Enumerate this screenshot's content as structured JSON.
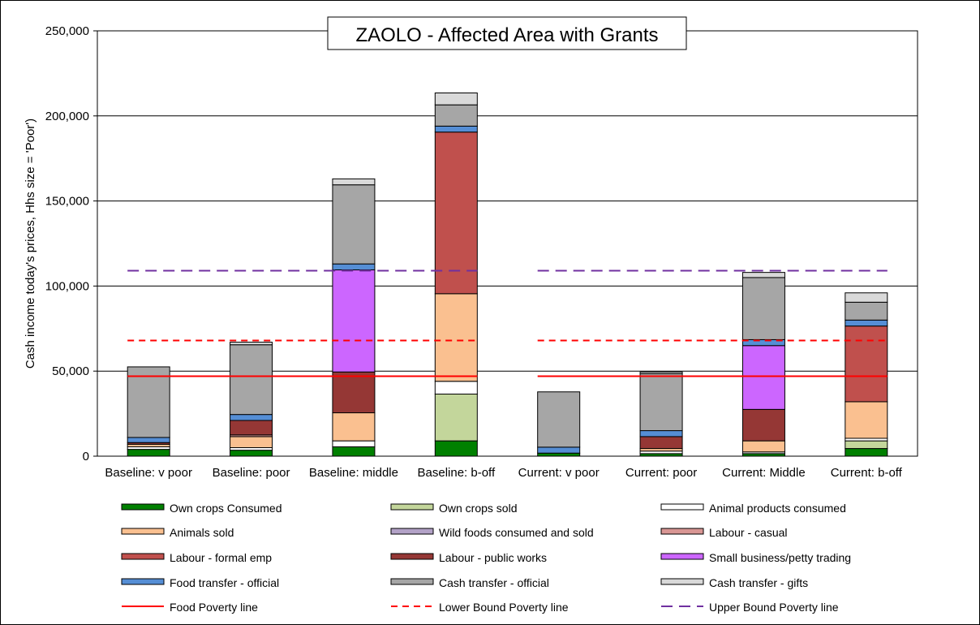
{
  "chart_data": {
    "type": "bar",
    "stacked": true,
    "title": "ZAOLO - Affected Area with Grants",
    "ylabel": "Cash income today's prices, Hhs size = 'Poor')",
    "xlabel": "",
    "ylim": [
      0,
      250000
    ],
    "y_ticks": [
      "0",
      "50,000",
      "100,000",
      "150,000",
      "200,000",
      "250,000"
    ],
    "y_tick_values": [
      0,
      50000,
      100000,
      150000,
      200000,
      250000
    ],
    "grid": true,
    "legend_position": "bottom",
    "categories": [
      "Baseline: v poor",
      "Baseline: poor",
      "Baseline: middle",
      "Baseline: b-off",
      "Current: v poor",
      "Current: poor",
      "Current: Middle",
      "Current: b-off"
    ],
    "series": [
      {
        "name": "Own crops Consumed",
        "color": "#008000",
        "values": [
          4000,
          3500,
          5500,
          9000,
          1800,
          1500,
          1500,
          4500
        ]
      },
      {
        "name": "Own crops sold",
        "color": "#c3d69b",
        "values": [
          0,
          0,
          0,
          27500,
          0,
          0,
          0,
          4500
        ]
      },
      {
        "name": "Animal products consumed",
        "color": "#ffffff",
        "values": [
          1500,
          1500,
          3500,
          7500,
          0,
          1500,
          1000,
          1500
        ]
      },
      {
        "name": "Animals sold",
        "color": "#fac090",
        "values": [
          1500,
          6500,
          16500,
          51500,
          0,
          1500,
          6500,
          21500
        ]
      },
      {
        "name": "Wild foods consumed and sold",
        "color": "#b3a2c7",
        "values": [
          0,
          0,
          0,
          0,
          0,
          0,
          0,
          0
        ]
      },
      {
        "name": "Labour - casual",
        "color": "#d99694",
        "values": [
          0,
          1000,
          0,
          0,
          0,
          0,
          0,
          0
        ]
      },
      {
        "name": "Labour - formal emp",
        "color": "#c0504d",
        "values": [
          0,
          0,
          0,
          95000,
          0,
          0,
          0,
          44500
        ]
      },
      {
        "name": "Labour - public works",
        "color": "#953735",
        "values": [
          1000,
          8500,
          24000,
          0,
          0,
          7000,
          18500,
          0
        ]
      },
      {
        "name": "Small business/petty trading",
        "color": "#cc66ff",
        "values": [
          0,
          0,
          60000,
          0,
          0,
          0,
          37500,
          0
        ]
      },
      {
        "name": "Food transfer - official",
        "color": "#558ed5",
        "values": [
          3000,
          3500,
          3500,
          3500,
          3500,
          3500,
          3500,
          3500
        ]
      },
      {
        "name": "Cash transfer - official",
        "color": "#a6a6a6",
        "values": [
          41500,
          41000,
          46500,
          12500,
          32500,
          33500,
          36500,
          10500
        ]
      },
      {
        "name": "Cash transfer - gifts",
        "color": "#d9d9d9",
        "values": [
          0,
          1500,
          3500,
          7000,
          0,
          1000,
          3000,
          5500
        ]
      }
    ],
    "lines": [
      {
        "name": "Food Poverty line",
        "color": "#ff0000",
        "style": "solid",
        "value": 47000
      },
      {
        "name": "Lower Bound Poverty line",
        "color": "#ff0000",
        "style": "dashed",
        "value": 68000
      },
      {
        "name": "Upper Bound Poverty line",
        "color": "#7030a0",
        "style": "dashed",
        "value": 109000
      }
    ]
  }
}
